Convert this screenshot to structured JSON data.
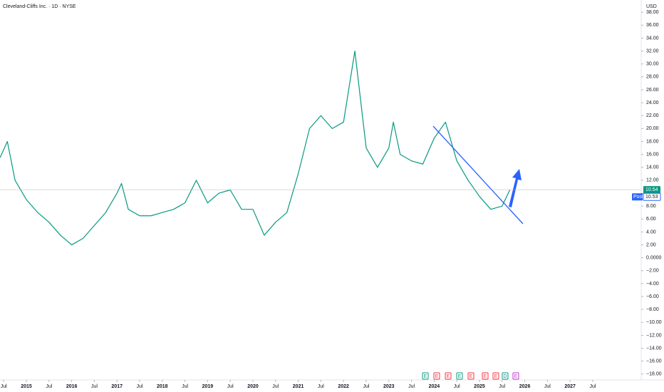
{
  "chart_data": {
    "type": "line",
    "title": "Cleveland-Cliffs Inc. · 1D · NYSE",
    "currency": "USD",
    "x": [
      2014.42,
      2014.58,
      2014.75,
      2015.0,
      2015.25,
      2015.5,
      2015.75,
      2016.0,
      2016.25,
      2016.5,
      2016.75,
      2017.0,
      2017.1,
      2017.25,
      2017.5,
      2017.75,
      2018.0,
      2018.25,
      2018.5,
      2018.75,
      2019.0,
      2019.25,
      2019.5,
      2019.75,
      2020.0,
      2020.25,
      2020.5,
      2020.75,
      2021.0,
      2021.25,
      2021.5,
      2021.75,
      2022.0,
      2022.25,
      2022.5,
      2022.75,
      2023.0,
      2023.1,
      2023.25,
      2023.5,
      2023.75,
      2024.0,
      2024.25,
      2024.5,
      2024.75,
      2025.0,
      2025.25,
      2025.5,
      2025.67
    ],
    "values": [
      15.5,
      18,
      12,
      9,
      7,
      5.5,
      3.5,
      2,
      3,
      5,
      7,
      10,
      11.5,
      7.5,
      6.5,
      6.5,
      7,
      7.5,
      8.5,
      12,
      8.5,
      10,
      10.5,
      7.5,
      7.5,
      3.5,
      5.5,
      7,
      13,
      20,
      22,
      20,
      21,
      32,
      17,
      14,
      17,
      21,
      16,
      15,
      14.5,
      18.5,
      21,
      15,
      12,
      9.5,
      7.5,
      8,
      10.5
    ],
    "color": "#089981",
    "current_price": {
      "value": 10.54,
      "label": "10.54"
    },
    "post_price": {
      "tag": "Post",
      "value": 10.53,
      "label": "10.53"
    },
    "xlim": [
      2014.418,
      2028.57
    ],
    "xticks": [
      {
        "value": 2014.5,
        "label": "Jul"
      },
      2015,
      {
        "value": 2015.5,
        "label": "Jul"
      },
      2016,
      {
        "value": 2016.5,
        "label": "Jul"
      },
      2017,
      {
        "value": 2017.5,
        "label": "Jul"
      },
      2018,
      {
        "value": 2018.5,
        "label": "Jul"
      },
      2019,
      {
        "value": 2019.5,
        "label": "Jul"
      },
      2020,
      {
        "value": 2020.5,
        "label": "Jul"
      },
      2021,
      {
        "value": 2021.5,
        "label": "Jul"
      },
      2022,
      {
        "value": 2022.5,
        "label": "Jul"
      },
      2023,
      {
        "value": 2023.5,
        "label": "Jul"
      },
      2024,
      {
        "value": 2024.5,
        "label": "Jul"
      },
      2025,
      {
        "value": 2025.5,
        "label": "Jul"
      },
      2026,
      {
        "value": 2026.5,
        "label": "Jul"
      },
      2027,
      {
        "value": 2027.5,
        "label": "Jul"
      }
    ],
    "ylim": [
      -18.9,
      39.9
    ],
    "yticks": [
      {
        "value": 38,
        "label": "38.00"
      },
      {
        "value": 36,
        "label": "36.00"
      },
      {
        "value": 34,
        "label": "34.00"
      },
      {
        "value": 32,
        "label": "32.00"
      },
      {
        "value": 30,
        "label": "30.00"
      },
      {
        "value": 28,
        "label": "28.00"
      },
      {
        "value": 26,
        "label": "26.00"
      },
      {
        "value": 24,
        "label": "24.00"
      },
      {
        "value": 22,
        "label": "22.00"
      },
      {
        "value": 20,
        "label": "20.00"
      },
      {
        "value": 18,
        "label": "18.00"
      },
      {
        "value": 16,
        "label": "16.00"
      },
      {
        "value": 14,
        "label": "14.00"
      },
      {
        "value": 12,
        "label": "12.00"
      },
      {
        "value": 10,
        "label": "10.00"
      },
      {
        "value": 8,
        "label": "8.00"
      },
      {
        "value": 6,
        "label": "6.00"
      },
      {
        "value": 4,
        "label": "4.00"
      },
      {
        "value": 2,
        "label": "2.00"
      },
      {
        "value": 0,
        "label": "0.0000"
      },
      {
        "value": -2,
        "label": "−2.00"
      },
      {
        "value": -4,
        "label": "−4.00"
      },
      {
        "value": -6,
        "label": "−6.00"
      },
      {
        "value": -8,
        "label": "−8.00"
      },
      {
        "value": -10,
        "label": "−10.00"
      },
      {
        "value": -12,
        "label": "−12.00"
      },
      {
        "value": -14,
        "label": "−14.00"
      },
      {
        "value": -16,
        "label": "−16.00"
      },
      {
        "value": -18,
        "label": "−18.00"
      }
    ],
    "events": [
      {
        "label": "E",
        "color": "#089981"
      },
      {
        "label": "E",
        "color": "#f23645"
      },
      {
        "label": "E",
        "color": "#f23645"
      },
      {
        "label": "E",
        "color": "#089981"
      },
      {
        "label": "E",
        "color": "#f23645"
      },
      {
        "label": "E",
        "color": "#f23645"
      },
      {
        "label": "E",
        "color": "#f23645"
      },
      {
        "label": "D",
        "color": "#089981"
      },
      {
        "label": "E",
        "color": "#c034d6"
      }
    ]
  }
}
